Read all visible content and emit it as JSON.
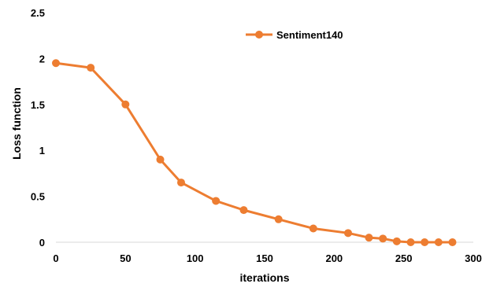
{
  "chart_data": {
    "type": "line",
    "xlabel": "iterations",
    "ylabel": "Loss function",
    "xlim": [
      0,
      300
    ],
    "ylim": [
      0,
      2.5
    ],
    "x_ticks": [
      "0",
      "50",
      "100",
      "150",
      "200",
      "250",
      "300"
    ],
    "y_ticks": [
      "0",
      "0.5",
      "1",
      "1.5",
      "2",
      "2.5"
    ],
    "grid": false,
    "legend_position": "top-center",
    "series": [
      {
        "name": "Sentiment140",
        "color": "#ED7D31",
        "points": [
          {
            "x": 0,
            "y": 1.95
          },
          {
            "x": 25,
            "y": 1.9
          },
          {
            "x": 50,
            "y": 1.5
          },
          {
            "x": 75,
            "y": 0.9
          },
          {
            "x": 90,
            "y": 0.65
          },
          {
            "x": 115,
            "y": 0.45
          },
          {
            "x": 135,
            "y": 0.35
          },
          {
            "x": 160,
            "y": 0.25
          },
          {
            "x": 185,
            "y": 0.15
          },
          {
            "x": 210,
            "y": 0.1
          },
          {
            "x": 225,
            "y": 0.05
          },
          {
            "x": 235,
            "y": 0.04
          },
          {
            "x": 245,
            "y": 0.01
          },
          {
            "x": 255,
            "y": 0.0
          },
          {
            "x": 265,
            "y": 0.0
          },
          {
            "x": 275,
            "y": 0.0
          },
          {
            "x": 285,
            "y": 0.0
          }
        ]
      }
    ]
  }
}
